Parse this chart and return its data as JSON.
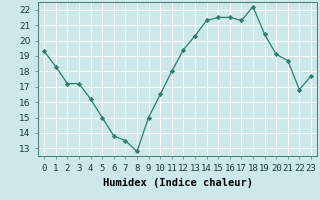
{
  "x": [
    0,
    1,
    2,
    3,
    4,
    5,
    6,
    7,
    8,
    9,
    10,
    11,
    12,
    13,
    14,
    15,
    16,
    17,
    18,
    19,
    20,
    21,
    22,
    23
  ],
  "y": [
    19.3,
    18.3,
    17.2,
    17.2,
    16.2,
    15.0,
    13.8,
    13.5,
    12.8,
    15.0,
    16.5,
    18.0,
    19.4,
    20.3,
    21.3,
    21.5,
    21.5,
    21.3,
    22.2,
    20.4,
    19.1,
    18.7,
    16.8,
    17.7
  ],
  "line_color": "#2e7d6e",
  "marker": "D",
  "marker_size": 2.2,
  "bg_color": "#cce8ea",
  "grid_color": "#ffffff",
  "xlabel": "Humidex (Indice chaleur)",
  "ylim": [
    12.5,
    22.5
  ],
  "xlim": [
    -0.5,
    23.5
  ],
  "yticks": [
    13,
    14,
    15,
    16,
    17,
    18,
    19,
    20,
    21,
    22
  ],
  "xtick_labels": [
    "0",
    "1",
    "2",
    "3",
    "4",
    "5",
    "6",
    "7",
    "8",
    "9",
    "10",
    "11",
    "12",
    "13",
    "14",
    "15",
    "16",
    "17",
    "18",
    "19",
    "20",
    "21",
    "22",
    "23"
  ],
  "label_fontsize": 7.5,
  "tick_fontsize": 6.5
}
